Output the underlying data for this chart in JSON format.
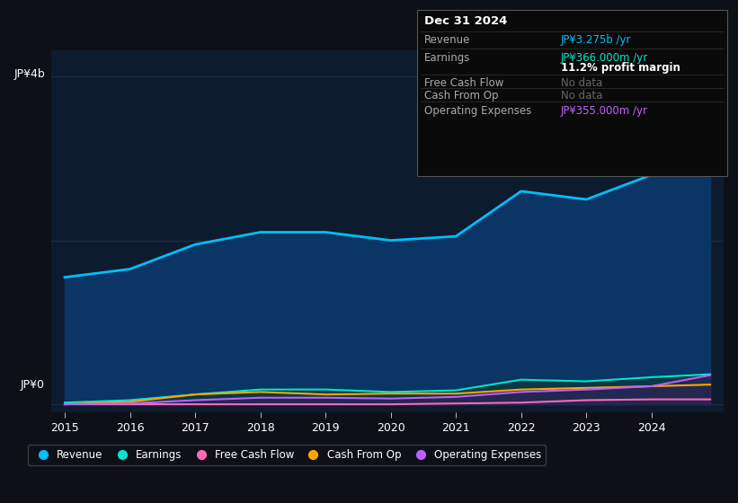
{
  "bg_color": "#0d1117",
  "plot_bg_color": "#0d1b2e",
  "grid_color": "#1e3050",
  "years": [
    2015,
    2016,
    2017,
    2018,
    2019,
    2020,
    2021,
    2022,
    2023,
    2024,
    2024.9
  ],
  "revenue": [
    1.55,
    1.65,
    1.95,
    2.1,
    2.1,
    2.0,
    2.05,
    2.6,
    2.5,
    2.8,
    3.275
  ],
  "earnings": [
    0.02,
    0.05,
    0.12,
    0.18,
    0.18,
    0.15,
    0.17,
    0.3,
    0.28,
    0.33,
    0.366
  ],
  "free_cash_flow": [
    0.0,
    0.0,
    0.0,
    0.0,
    0.0,
    0.0,
    0.01,
    0.02,
    0.05,
    0.06,
    0.06
  ],
  "cash_from_op": [
    0.0,
    0.03,
    0.12,
    0.15,
    0.12,
    0.13,
    0.13,
    0.18,
    0.2,
    0.22,
    0.24
  ],
  "op_expenses": [
    0.0,
    0.01,
    0.05,
    0.08,
    0.08,
    0.07,
    0.09,
    0.15,
    0.18,
    0.22,
    0.355
  ],
  "revenue_color": "#00bfff",
  "earnings_color": "#00e5cc",
  "free_cash_flow_color": "#ff69b4",
  "cash_from_op_color": "#ffa500",
  "op_expenses_color": "#bf5fff",
  "revenue_fill": "#0a3a6e",
  "earnings_fill": "#0a3a3a",
  "op_expenses_fill": "#3a1a5a",
  "ylim_top": 4.0,
  "ylim_bottom": -0.1,
  "ylabel_top": "JP¥4b",
  "ylabel_bottom": "JP¥0",
  "xticks": [
    2015,
    2016,
    2017,
    2018,
    2019,
    2020,
    2021,
    2022,
    2023,
    2024
  ],
  "info_box": {
    "date": "Dec 31 2024",
    "revenue_label": "Revenue",
    "revenue_value": "JP¥3.275b /yr",
    "earnings_label": "Earnings",
    "earnings_value": "JP¥366.000m /yr",
    "profit_margin": "11.2% profit margin",
    "free_cash_flow_label": "Free Cash Flow",
    "free_cash_flow_value": "No data",
    "cash_from_op_label": "Cash From Op",
    "cash_from_op_value": "No data",
    "op_expenses_label": "Operating Expenses",
    "op_expenses_value": "JP¥355.000m /yr"
  },
  "legend_items": [
    {
      "label": "Revenue",
      "color": "#00bfff"
    },
    {
      "label": "Earnings",
      "color": "#00e5cc"
    },
    {
      "label": "Free Cash Flow",
      "color": "#ff69b4"
    },
    {
      "label": "Cash From Op",
      "color": "#ffa500"
    },
    {
      "label": "Operating Expenses",
      "color": "#bf5fff"
    }
  ]
}
